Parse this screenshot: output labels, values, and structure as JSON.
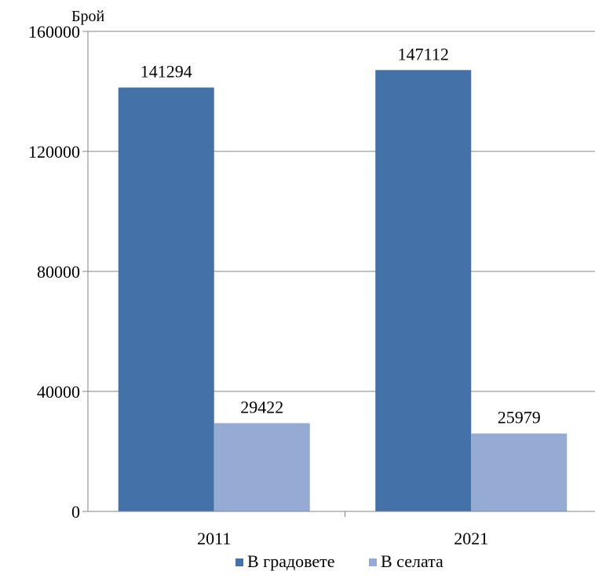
{
  "chart_data": {
    "type": "bar",
    "categories": [
      "2011",
      "2021"
    ],
    "series": [
      {
        "name": "В градовете",
        "values": [
          141294,
          147112
        ],
        "color": "#4472a8"
      },
      {
        "name": "В селата",
        "values": [
          29422,
          25979
        ],
        "color": "#95abd3"
      }
    ],
    "ylabel": "Брой",
    "ylim": [
      0,
      160000
    ],
    "yticks": [
      0,
      40000,
      80000,
      120000,
      160000
    ],
    "ytick_labels": [
      "0",
      "40000",
      "80000",
      "120000",
      "160000"
    ],
    "data_labels": [
      "141294",
      "29422",
      "147112",
      "25979"
    ],
    "grid": true,
    "legend_position": "bottom",
    "axis_color": "#868686",
    "grid_color": "#868686"
  }
}
